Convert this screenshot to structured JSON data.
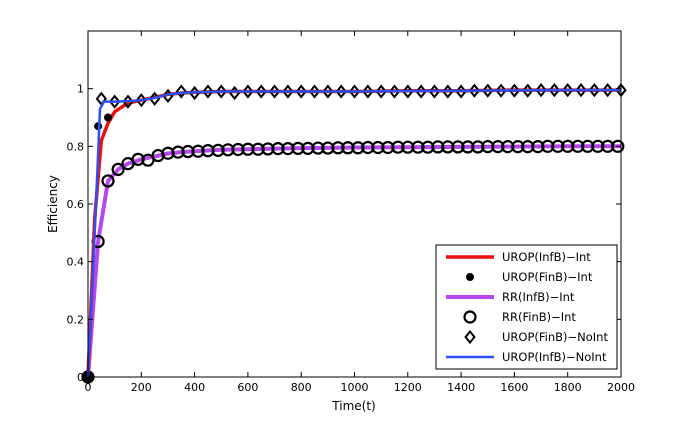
{
  "chart_data": {
    "type": "line",
    "title": "",
    "xlabel": "Time(t)",
    "ylabel": "Efficiency",
    "xlim": [
      0,
      2000
    ],
    "ylim": [
      0,
      1.2
    ],
    "xticks": [
      0,
      200,
      400,
      600,
      800,
      1000,
      1200,
      1400,
      1600,
      1800,
      2000
    ],
    "yticks": [
      0,
      0.2,
      0.4,
      0.6,
      0.8,
      1
    ],
    "xtick_labels": [
      "0",
      "200",
      "400",
      "600",
      "800",
      "1000",
      "1200",
      "1400",
      "1600",
      "1800",
      "2000"
    ],
    "ytick_labels": [
      "0",
      "0.2",
      "0.4",
      "0.6",
      "0.8",
      "1"
    ],
    "grid": false,
    "legend_position": "bottom-right",
    "series": [
      {
        "name": "UROP(InfB)−Int",
        "style": "line",
        "color": "#e8110f",
        "x": [
          0,
          25,
          50,
          75,
          100,
          150,
          200,
          250,
          300,
          350,
          400,
          500,
          600,
          700,
          800,
          1000,
          1200,
          1400,
          1600,
          1800,
          2000
        ],
        "y": [
          0,
          0.55,
          0.82,
          0.88,
          0.92,
          0.95,
          0.96,
          0.97,
          0.98,
          0.985,
          0.987,
          0.99,
          0.99,
          0.99,
          0.99,
          0.99,
          0.993,
          0.993,
          0.995,
          0.995,
          0.995
        ]
      },
      {
        "name": "UROP(FinB)−Int",
        "style": "dot",
        "color": "#000000",
        "x": [
          0,
          38,
          75
        ],
        "y": [
          0,
          0.87,
          0.9
        ]
      },
      {
        "name": "RR(InfB)−Int",
        "style": "line",
        "color": "#b748f0",
        "x": [
          0,
          38,
          75,
          113,
          150,
          200,
          250,
          300,
          350,
          400,
          500,
          600,
          700,
          800,
          1000,
          1200,
          1400,
          1600,
          1800,
          2000
        ],
        "y": [
          0,
          0.47,
          0.68,
          0.72,
          0.74,
          0.755,
          0.765,
          0.775,
          0.78,
          0.783,
          0.788,
          0.79,
          0.792,
          0.794,
          0.796,
          0.797,
          0.798,
          0.799,
          0.8,
          0.8
        ]
      },
      {
        "name": "RR(FinB)−Int",
        "style": "circle",
        "color": "#000000",
        "x": [
          0,
          38,
          75,
          113,
          150,
          188,
          225,
          263,
          300,
          338,
          375,
          413,
          450,
          488,
          525,
          563,
          600,
          638,
          675,
          713,
          750,
          788,
          825,
          863,
          900,
          938,
          975,
          1013,
          1050,
          1088,
          1125,
          1163,
          1200,
          1238,
          1275,
          1313,
          1350,
          1388,
          1425,
          1463,
          1500,
          1538,
          1575,
          1613,
          1650,
          1688,
          1725,
          1763,
          1800,
          1838,
          1875,
          1913,
          1950,
          1988
        ],
        "y": [
          0,
          0.47,
          0.68,
          0.72,
          0.74,
          0.755,
          0.752,
          0.768,
          0.776,
          0.78,
          0.782,
          0.783,
          0.785,
          0.786,
          0.788,
          0.789,
          0.79,
          0.79,
          0.791,
          0.792,
          0.792,
          0.793,
          0.793,
          0.794,
          0.794,
          0.795,
          0.795,
          0.795,
          0.796,
          0.796,
          0.796,
          0.797,
          0.797,
          0.797,
          0.797,
          0.798,
          0.798,
          0.798,
          0.798,
          0.798,
          0.799,
          0.799,
          0.799,
          0.799,
          0.799,
          0.799,
          0.8,
          0.8,
          0.8,
          0.8,
          0.8,
          0.8,
          0.8,
          0.8
        ]
      },
      {
        "name": "UROP(FinB)−NoInt",
        "style": "diamond",
        "color": "#000000",
        "x": [
          0,
          50,
          100,
          150,
          200,
          250,
          300,
          350,
          400,
          450,
          500,
          550,
          600,
          650,
          700,
          750,
          800,
          850,
          900,
          950,
          1000,
          1050,
          1100,
          1150,
          1200,
          1250,
          1300,
          1350,
          1400,
          1450,
          1500,
          1550,
          1600,
          1650,
          1700,
          1750,
          1800,
          1850,
          1900,
          1950,
          2000
        ],
        "y": [
          0,
          0.965,
          0.955,
          0.955,
          0.96,
          0.965,
          0.975,
          0.99,
          0.985,
          0.99,
          0.99,
          0.985,
          0.99,
          0.99,
          0.99,
          0.99,
          0.99,
          0.99,
          0.99,
          0.99,
          0.99,
          0.99,
          0.99,
          0.99,
          0.99,
          0.99,
          0.99,
          0.99,
          0.99,
          0.993,
          0.993,
          0.993,
          0.993,
          0.993,
          0.995,
          0.995,
          0.995,
          0.995,
          0.995,
          0.995,
          0.995
        ]
      },
      {
        "name": "UROP(InfB)−NoInt",
        "style": "line",
        "color": "#2d4ff5",
        "x": [
          0,
          30,
          45,
          60,
          100,
          150,
          200,
          250,
          300,
          350,
          400,
          500,
          600,
          800,
          1000,
          1200,
          1400,
          1600,
          1800,
          2000
        ],
        "y": [
          0,
          0.6,
          0.93,
          0.955,
          0.955,
          0.957,
          0.96,
          0.968,
          0.98,
          0.985,
          0.987,
          0.99,
          0.99,
          0.99,
          0.99,
          0.992,
          0.993,
          0.994,
          0.995,
          0.995
        ]
      }
    ]
  }
}
